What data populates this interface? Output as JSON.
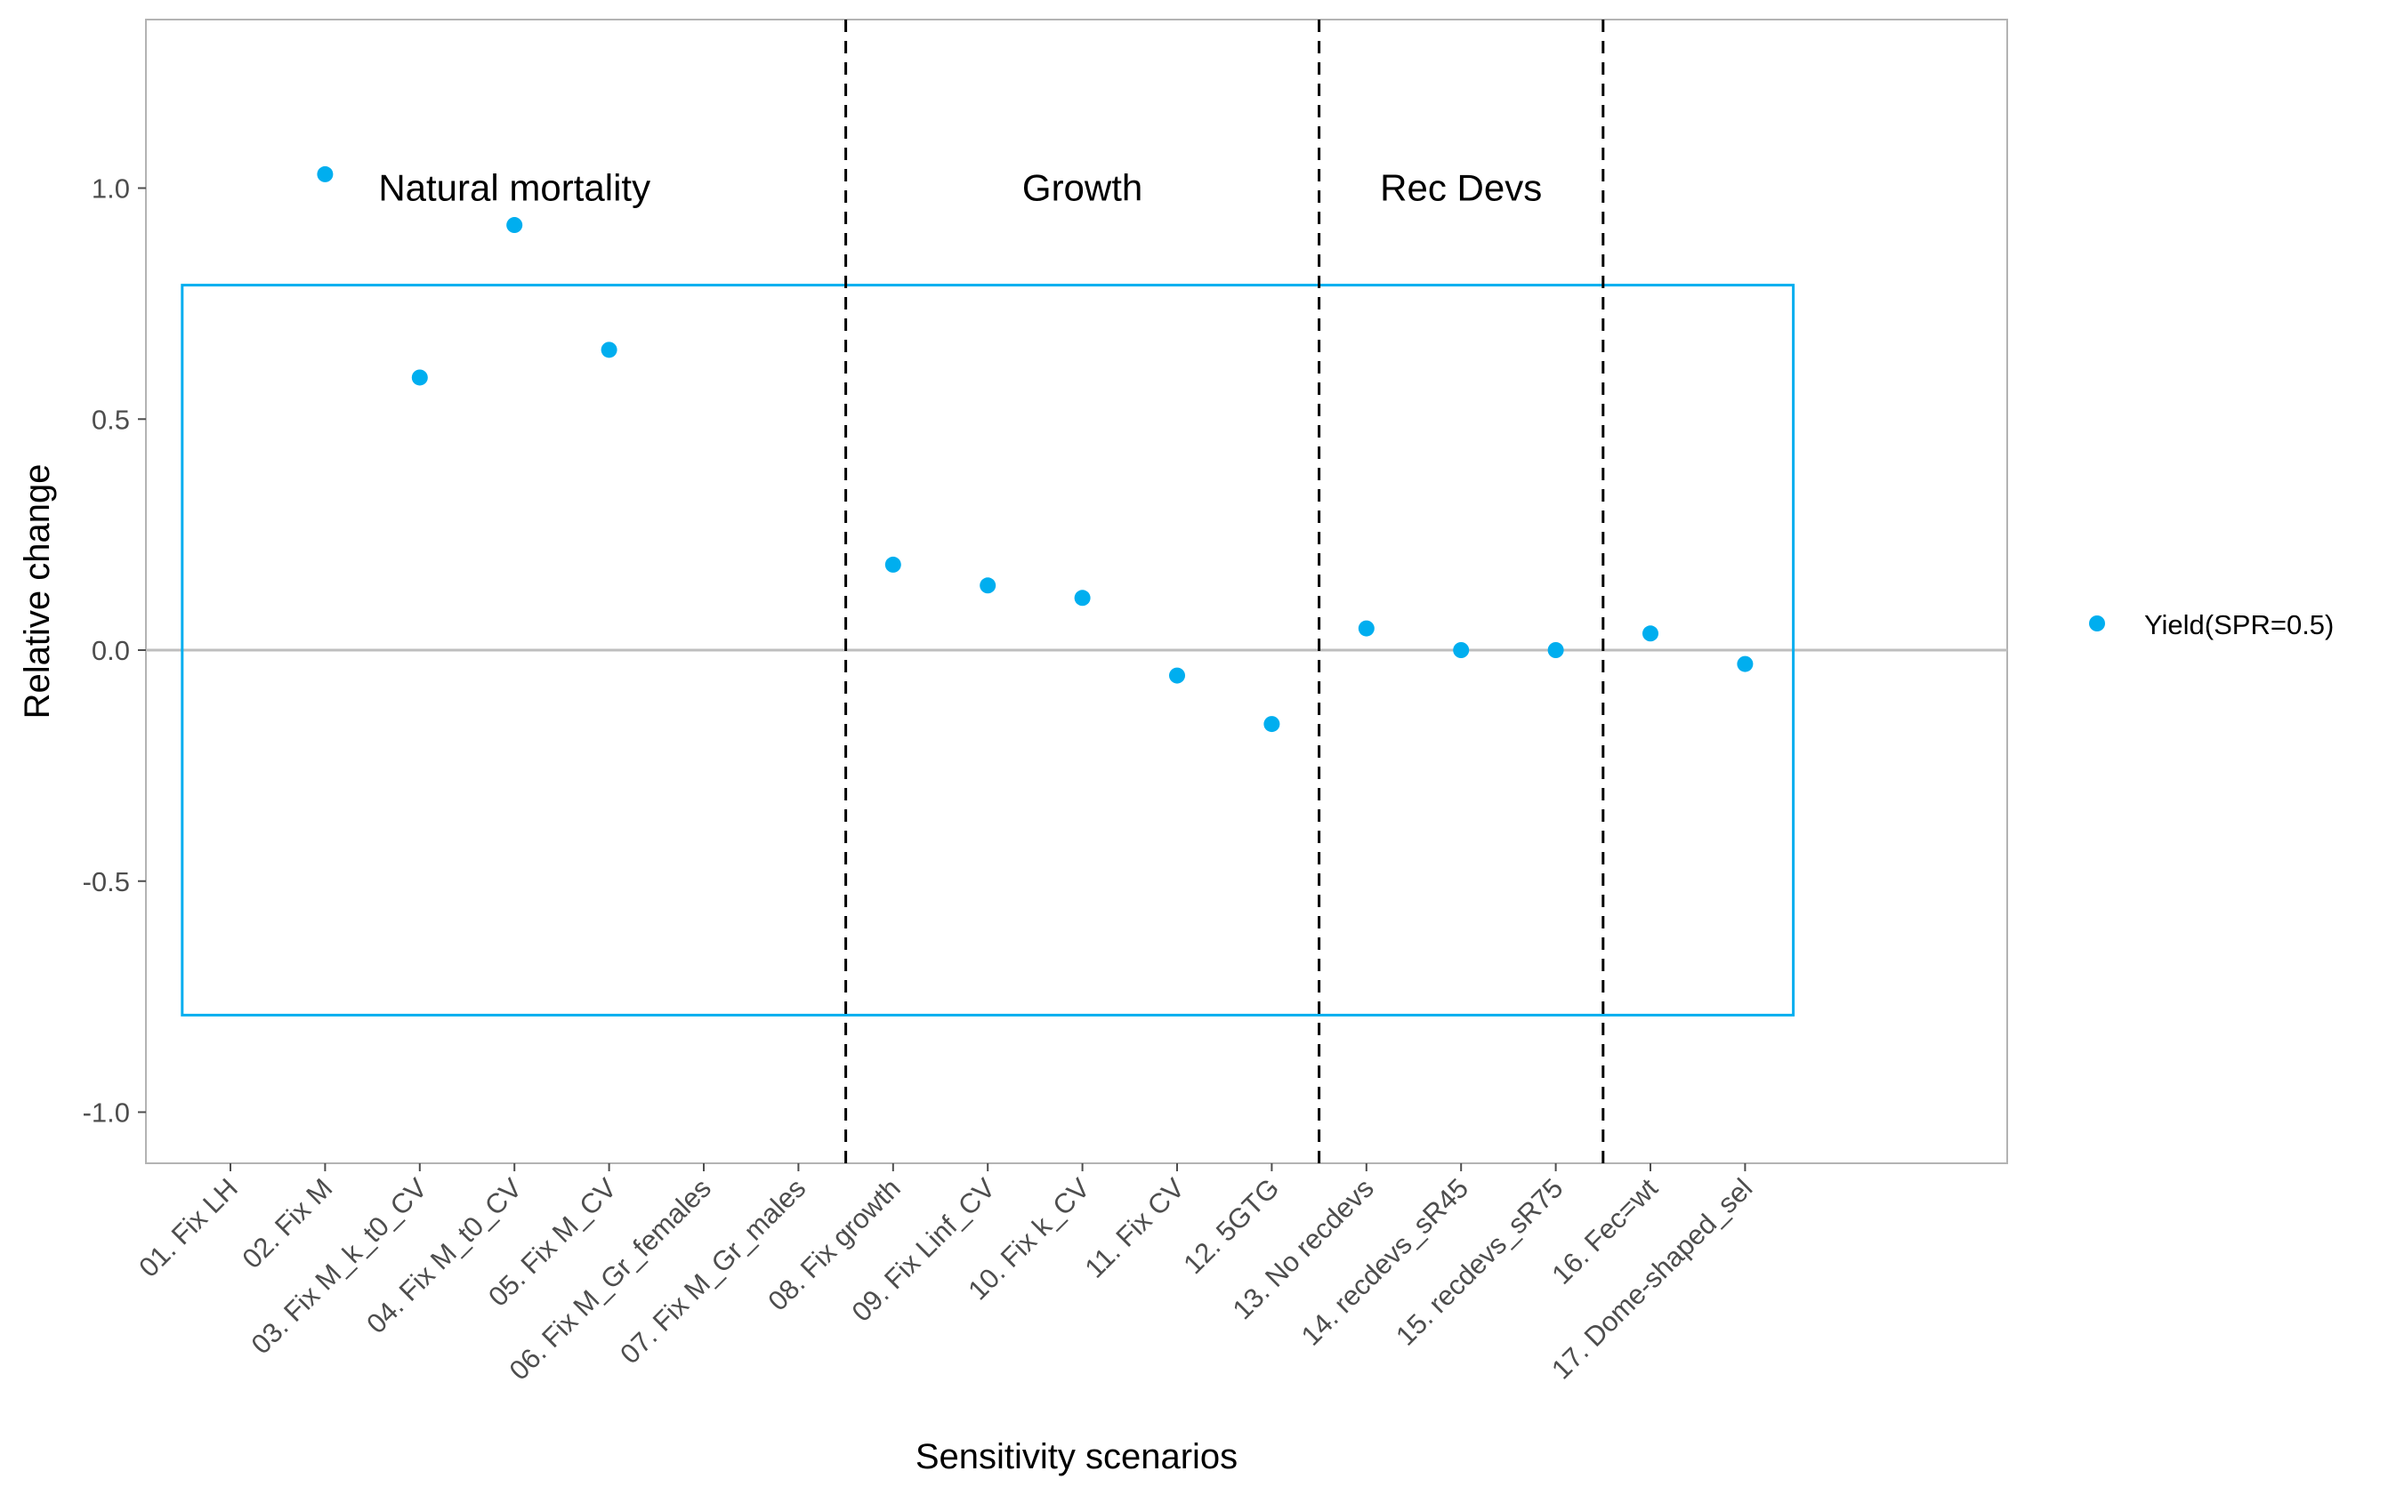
{
  "chart_data": {
    "type": "scatter",
    "xlabel": "Sensitivity scenarios",
    "ylabel": "Relative change",
    "ylim": [
      -1.1,
      1.35
    ],
    "yticks": [
      {
        "value": 1.0,
        "label": "1.0"
      },
      {
        "value": 0.5,
        "label": "0.5"
      },
      {
        "value": 0.0,
        "label": "0.0"
      },
      {
        "value": -0.5,
        "label": "-0.5"
      },
      {
        "value": -1.0,
        "label": "-1.0"
      }
    ],
    "grid": false,
    "legend_position": "right",
    "categories": [
      "01. Fix LH",
      "02. Fix M",
      "03. Fix M_k_t0_CV",
      "04. Fix M_t0_CV",
      "05. Fix M_CV",
      "06. Fix M_Gr_females",
      "07. Fix M_Gr_males",
      "08. Fix growth",
      "09. Fix Linf_CV",
      "10. Fix k_CV",
      "11. Fix CV",
      "12. 5GTG",
      "13. No recdevs",
      "14. recdevs_sR45",
      "15. recdevs_sR75",
      "16. Fec=wt",
      "17. Dome-shaped_sel"
    ],
    "series": [
      {
        "name": "Yield(SPR=0.5)",
        "color": "#00AEEF",
        "values": [
          null,
          1.03,
          0.59,
          0.92,
          0.65,
          null,
          null,
          0.185,
          0.14,
          0.113,
          -0.055,
          -0.16,
          0.047,
          0.0,
          0.0,
          0.036,
          -0.03
        ]
      }
    ],
    "reference_line": {
      "y": 0.0,
      "color": "#BEBEBE"
    },
    "box": {
      "ymin": -0.79,
      "ymax": 0.79,
      "color": "#00AEEF"
    },
    "dividers": [
      7.5,
      12.5,
      15.5
    ],
    "region_labels": [
      {
        "text": "Natural mortality",
        "x": 4.0,
        "y": 1.0
      },
      {
        "text": "Growth",
        "x": 10.0,
        "y": 1.0
      },
      {
        "text": "Rec Devs",
        "x": 14.0,
        "y": 1.0
      }
    ]
  }
}
